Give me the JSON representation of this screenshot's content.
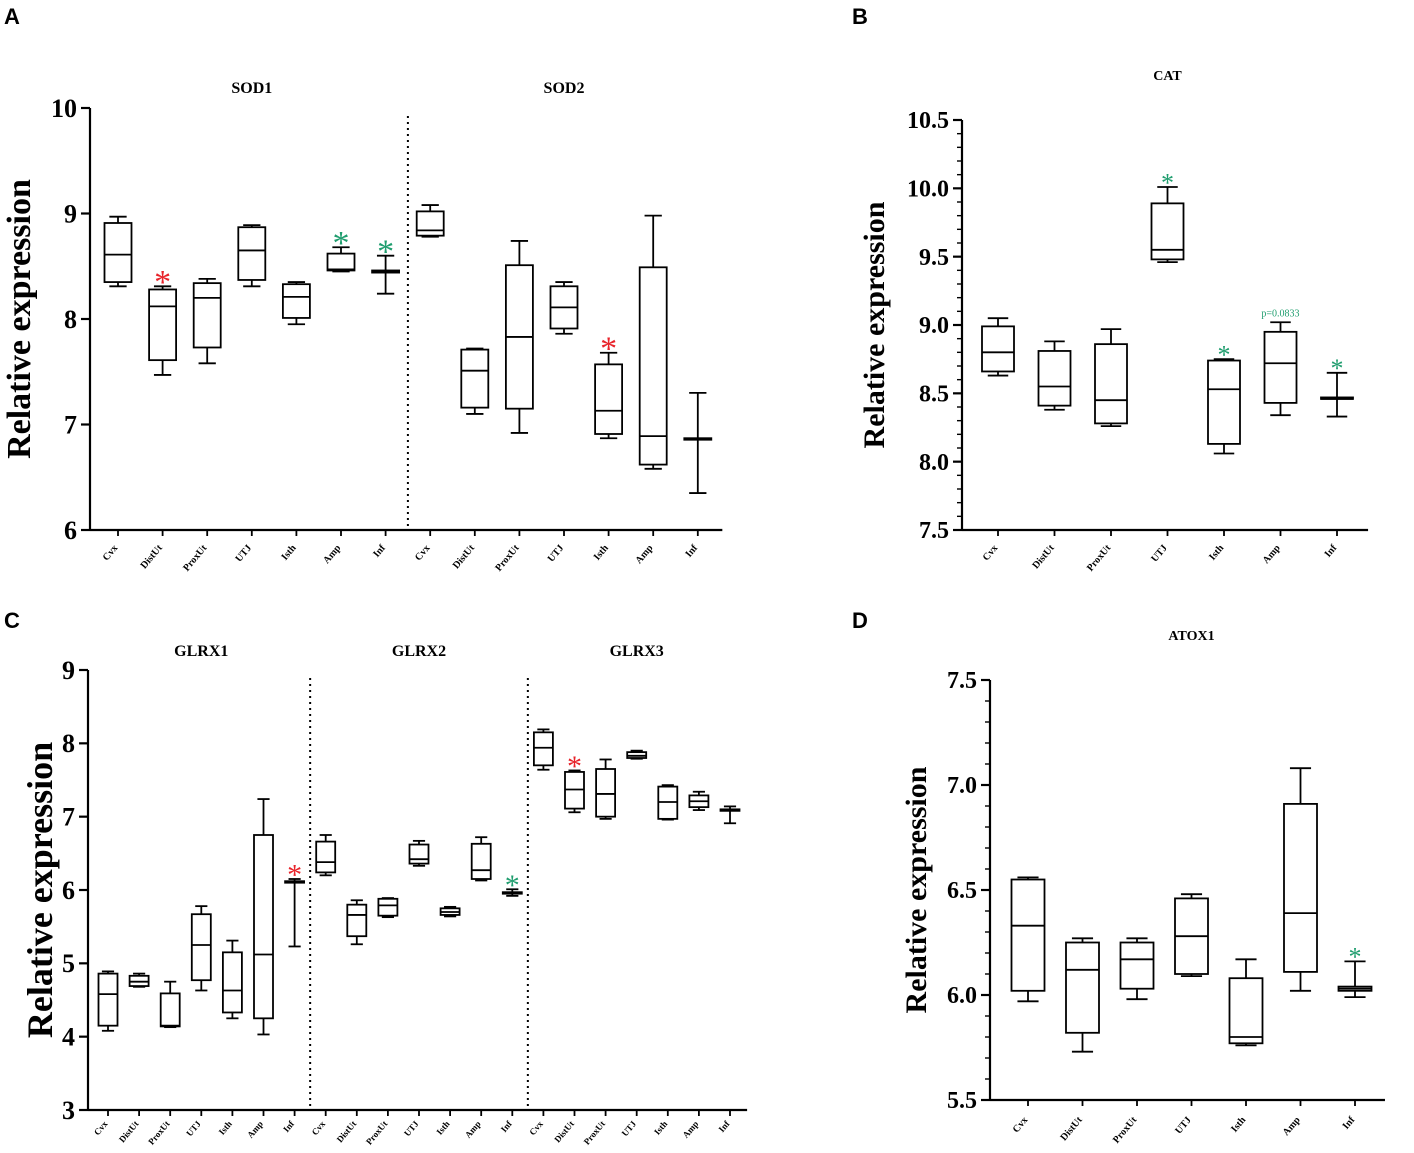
{
  "colors": {
    "axis": "#000000",
    "up": "#e8232a",
    "down": "#1f9d6e",
    "bg": "#ffffff"
  },
  "panels": [
    "A",
    "B",
    "C",
    "D"
  ],
  "chart_data": [
    {
      "panel": "A",
      "type": "box",
      "ylabel": "Relative expression",
      "ylim": [
        6,
        10
      ],
      "yticks": [
        "6",
        "7",
        "8",
        "9",
        "10"
      ],
      "minor_per_major": 0,
      "groups": [
        {
          "label": "SOD1",
          "boxes": [
            {
              "cat": "Cvx",
              "min": 8.31,
              "q1": 8.35,
              "median": 8.61,
              "q3": 8.91,
              "max": 8.97
            },
            {
              "cat": "DistUt",
              "min": 7.47,
              "q1": 7.61,
              "median": 8.12,
              "q3": 8.28,
              "max": 8.31,
              "sig": "up"
            },
            {
              "cat": "ProxUt",
              "min": 7.58,
              "q1": 7.73,
              "median": 8.2,
              "q3": 8.34,
              "max": 8.38
            },
            {
              "cat": "UTJ",
              "min": 8.31,
              "q1": 8.37,
              "median": 8.65,
              "q3": 8.87,
              "max": 8.89
            },
            {
              "cat": "Isth",
              "min": 7.95,
              "q1": 8.01,
              "median": 8.21,
              "q3": 8.33,
              "max": 8.35
            },
            {
              "cat": "Amp",
              "min": 8.45,
              "q1": 8.46,
              "median": 8.47,
              "q3": 8.62,
              "max": 8.68,
              "sig": "down"
            },
            {
              "cat": "Inf",
              "min": 8.24,
              "q1": 8.44,
              "median": 8.45,
              "q3": 8.46,
              "max": 8.6,
              "sig": "down"
            }
          ]
        },
        {
          "label": "SOD2",
          "boxes": [
            {
              "cat": "Cvx",
              "min": 8.78,
              "q1": 8.79,
              "median": 8.84,
              "q3": 9.02,
              "max": 9.08
            },
            {
              "cat": "DistUt",
              "min": 7.1,
              "q1": 7.16,
              "median": 7.51,
              "q3": 7.71,
              "max": 7.72
            },
            {
              "cat": "ProxUt",
              "min": 6.92,
              "q1": 7.15,
              "median": 7.83,
              "q3": 8.51,
              "max": 8.74
            },
            {
              "cat": "UTJ",
              "min": 7.86,
              "q1": 7.91,
              "median": 8.11,
              "q3": 8.31,
              "max": 8.35
            },
            {
              "cat": "Isth",
              "min": 6.87,
              "q1": 6.91,
              "median": 7.13,
              "q3": 7.57,
              "max": 7.68,
              "sig": "up"
            },
            {
              "cat": "Amp",
              "min": 6.58,
              "q1": 6.62,
              "median": 6.89,
              "q3": 8.49,
              "max": 8.98
            },
            {
              "cat": "Inf",
              "min": 6.35,
              "q1": 6.86,
              "median": 6.86,
              "q3": 6.87,
              "max": 7.3
            }
          ]
        }
      ]
    },
    {
      "panel": "B",
      "type": "box",
      "ylabel": "Relative expression",
      "ylim": [
        7.5,
        10.5
      ],
      "yticks": [
        "7.5",
        "8.0",
        "8.5",
        "9.0",
        "9.5",
        "10.0",
        "10.5"
      ],
      "minor_per_major": 5,
      "groups": [
        {
          "label": "CAT",
          "boxes": [
            {
              "cat": "Cvx",
              "min": 8.63,
              "q1": 8.66,
              "median": 8.8,
              "q3": 8.99,
              "max": 9.05
            },
            {
              "cat": "DistUt",
              "min": 8.38,
              "q1": 8.41,
              "median": 8.55,
              "q3": 8.81,
              "max": 8.88
            },
            {
              "cat": "ProxUt",
              "min": 8.26,
              "q1": 8.28,
              "median": 8.45,
              "q3": 8.86,
              "max": 8.97
            },
            {
              "cat": "UTJ",
              "min": 9.46,
              "q1": 9.48,
              "median": 9.55,
              "q3": 9.89,
              "max": 10.01,
              "sig": "down"
            },
            {
              "cat": "Isth",
              "min": 8.06,
              "q1": 8.13,
              "median": 8.53,
              "q3": 8.74,
              "max": 8.75,
              "sig": "down"
            },
            {
              "cat": "Amp",
              "min": 8.34,
              "q1": 8.43,
              "median": 8.72,
              "q3": 8.95,
              "max": 9.02,
              "note": "p=0.0833"
            },
            {
              "cat": "Inf",
              "min": 8.33,
              "q1": 8.46,
              "median": 8.46,
              "q3": 8.47,
              "max": 8.65,
              "sig": "down"
            }
          ]
        }
      ]
    },
    {
      "panel": "C",
      "type": "box",
      "ylabel": "Relative expression",
      "ylim": [
        3,
        9
      ],
      "yticks": [
        "3",
        "4",
        "5",
        "6",
        "7",
        "8",
        "9"
      ],
      "minor_per_major": 0,
      "groups": [
        {
          "label": "GLRX1",
          "boxes": [
            {
              "cat": "Cvx",
              "min": 4.08,
              "q1": 4.15,
              "median": 4.58,
              "q3": 4.86,
              "max": 4.89
            },
            {
              "cat": "DistUt",
              "min": 4.68,
              "q1": 4.69,
              "median": 4.75,
              "q3": 4.83,
              "max": 4.86
            },
            {
              "cat": "ProxUt",
              "min": 4.13,
              "q1": 4.14,
              "median": 4.15,
              "q3": 4.59,
              "max": 4.75
            },
            {
              "cat": "UTJ",
              "min": 4.63,
              "q1": 4.77,
              "median": 5.25,
              "q3": 5.67,
              "max": 5.78
            },
            {
              "cat": "Isth",
              "min": 4.25,
              "q1": 4.33,
              "median": 4.63,
              "q3": 5.15,
              "max": 5.31
            },
            {
              "cat": "Amp",
              "min": 4.03,
              "q1": 4.25,
              "median": 5.12,
              "q3": 6.75,
              "max": 7.24
            },
            {
              "cat": "Inf",
              "min": 5.23,
              "q1": 6.1,
              "median": 6.11,
              "q3": 6.12,
              "max": 6.15,
              "sig": "up"
            }
          ]
        },
        {
          "label": "GLRX2",
          "boxes": [
            {
              "cat": "Cvx",
              "min": 6.2,
              "q1": 6.24,
              "median": 6.38,
              "q3": 6.66,
              "max": 6.75
            },
            {
              "cat": "DistUt",
              "min": 5.26,
              "q1": 5.37,
              "median": 5.66,
              "q3": 5.8,
              "max": 5.86
            },
            {
              "cat": "ProxUt",
              "min": 5.63,
              "q1": 5.65,
              "median": 5.79,
              "q3": 5.88,
              "max": 5.89
            },
            {
              "cat": "UTJ",
              "min": 6.33,
              "q1": 6.36,
              "median": 6.42,
              "q3": 6.62,
              "max": 6.67
            },
            {
              "cat": "Isth",
              "min": 5.64,
              "q1": 5.66,
              "median": 5.7,
              "q3": 5.75,
              "max": 5.77
            },
            {
              "cat": "Amp",
              "min": 6.13,
              "q1": 6.15,
              "median": 6.27,
              "q3": 6.63,
              "max": 6.72
            },
            {
              "cat": "Inf",
              "min": 5.92,
              "q1": 5.95,
              "median": 5.96,
              "q3": 5.97,
              "max": 6.01,
              "sig": "down"
            }
          ]
        },
        {
          "label": "GLRX3",
          "boxes": [
            {
              "cat": "Cvx",
              "min": 7.64,
              "q1": 7.7,
              "median": 7.94,
              "q3": 8.15,
              "max": 8.19
            },
            {
              "cat": "DistUt",
              "min": 7.06,
              "q1": 7.11,
              "median": 7.37,
              "q3": 7.61,
              "max": 7.63,
              "sig": "up"
            },
            {
              "cat": "ProxUt",
              "min": 6.97,
              "q1": 7.0,
              "median": 7.31,
              "q3": 7.65,
              "max": 7.78
            },
            {
              "cat": "UTJ",
              "min": 7.79,
              "q1": 7.8,
              "median": 7.83,
              "q3": 7.88,
              "max": 7.9
            },
            {
              "cat": "Isth",
              "min": 6.96,
              "q1": 6.97,
              "median": 7.2,
              "q3": 7.41,
              "max": 7.43
            },
            {
              "cat": "Amp",
              "min": 7.09,
              "q1": 7.13,
              "median": 7.21,
              "q3": 7.29,
              "max": 7.34
            },
            {
              "cat": "Inf",
              "min": 6.91,
              "q1": 7.08,
              "median": 7.09,
              "q3": 7.1,
              "max": 7.14
            }
          ]
        }
      ]
    },
    {
      "panel": "D",
      "type": "box",
      "ylabel": "Relative expression",
      "ylim": [
        5.5,
        7.5
      ],
      "yticks": [
        "5.5",
        "6.0",
        "6.5",
        "7.0",
        "7.5"
      ],
      "minor_per_major": 5,
      "groups": [
        {
          "label": "ATOX1",
          "boxes": [
            {
              "cat": "Cvx",
              "min": 5.97,
              "q1": 6.02,
              "median": 6.33,
              "q3": 6.55,
              "max": 6.56
            },
            {
              "cat": "DistUt",
              "min": 5.73,
              "q1": 5.82,
              "median": 6.12,
              "q3": 6.25,
              "max": 6.27
            },
            {
              "cat": "ProxUt",
              "min": 5.98,
              "q1": 6.03,
              "median": 6.17,
              "q3": 6.25,
              "max": 6.27
            },
            {
              "cat": "UTJ",
              "min": 6.09,
              "q1": 6.1,
              "median": 6.28,
              "q3": 6.46,
              "max": 6.48
            },
            {
              "cat": "Isth",
              "min": 5.76,
              "q1": 5.77,
              "median": 5.8,
              "q3": 6.08,
              "max": 6.17
            },
            {
              "cat": "Amp",
              "min": 6.02,
              "q1": 6.11,
              "median": 6.39,
              "q3": 6.91,
              "max": 7.08
            },
            {
              "cat": "Inf",
              "min": 5.99,
              "q1": 6.02,
              "median": 6.03,
              "q3": 6.04,
              "max": 6.16,
              "sig": "down"
            }
          ]
        }
      ]
    }
  ]
}
